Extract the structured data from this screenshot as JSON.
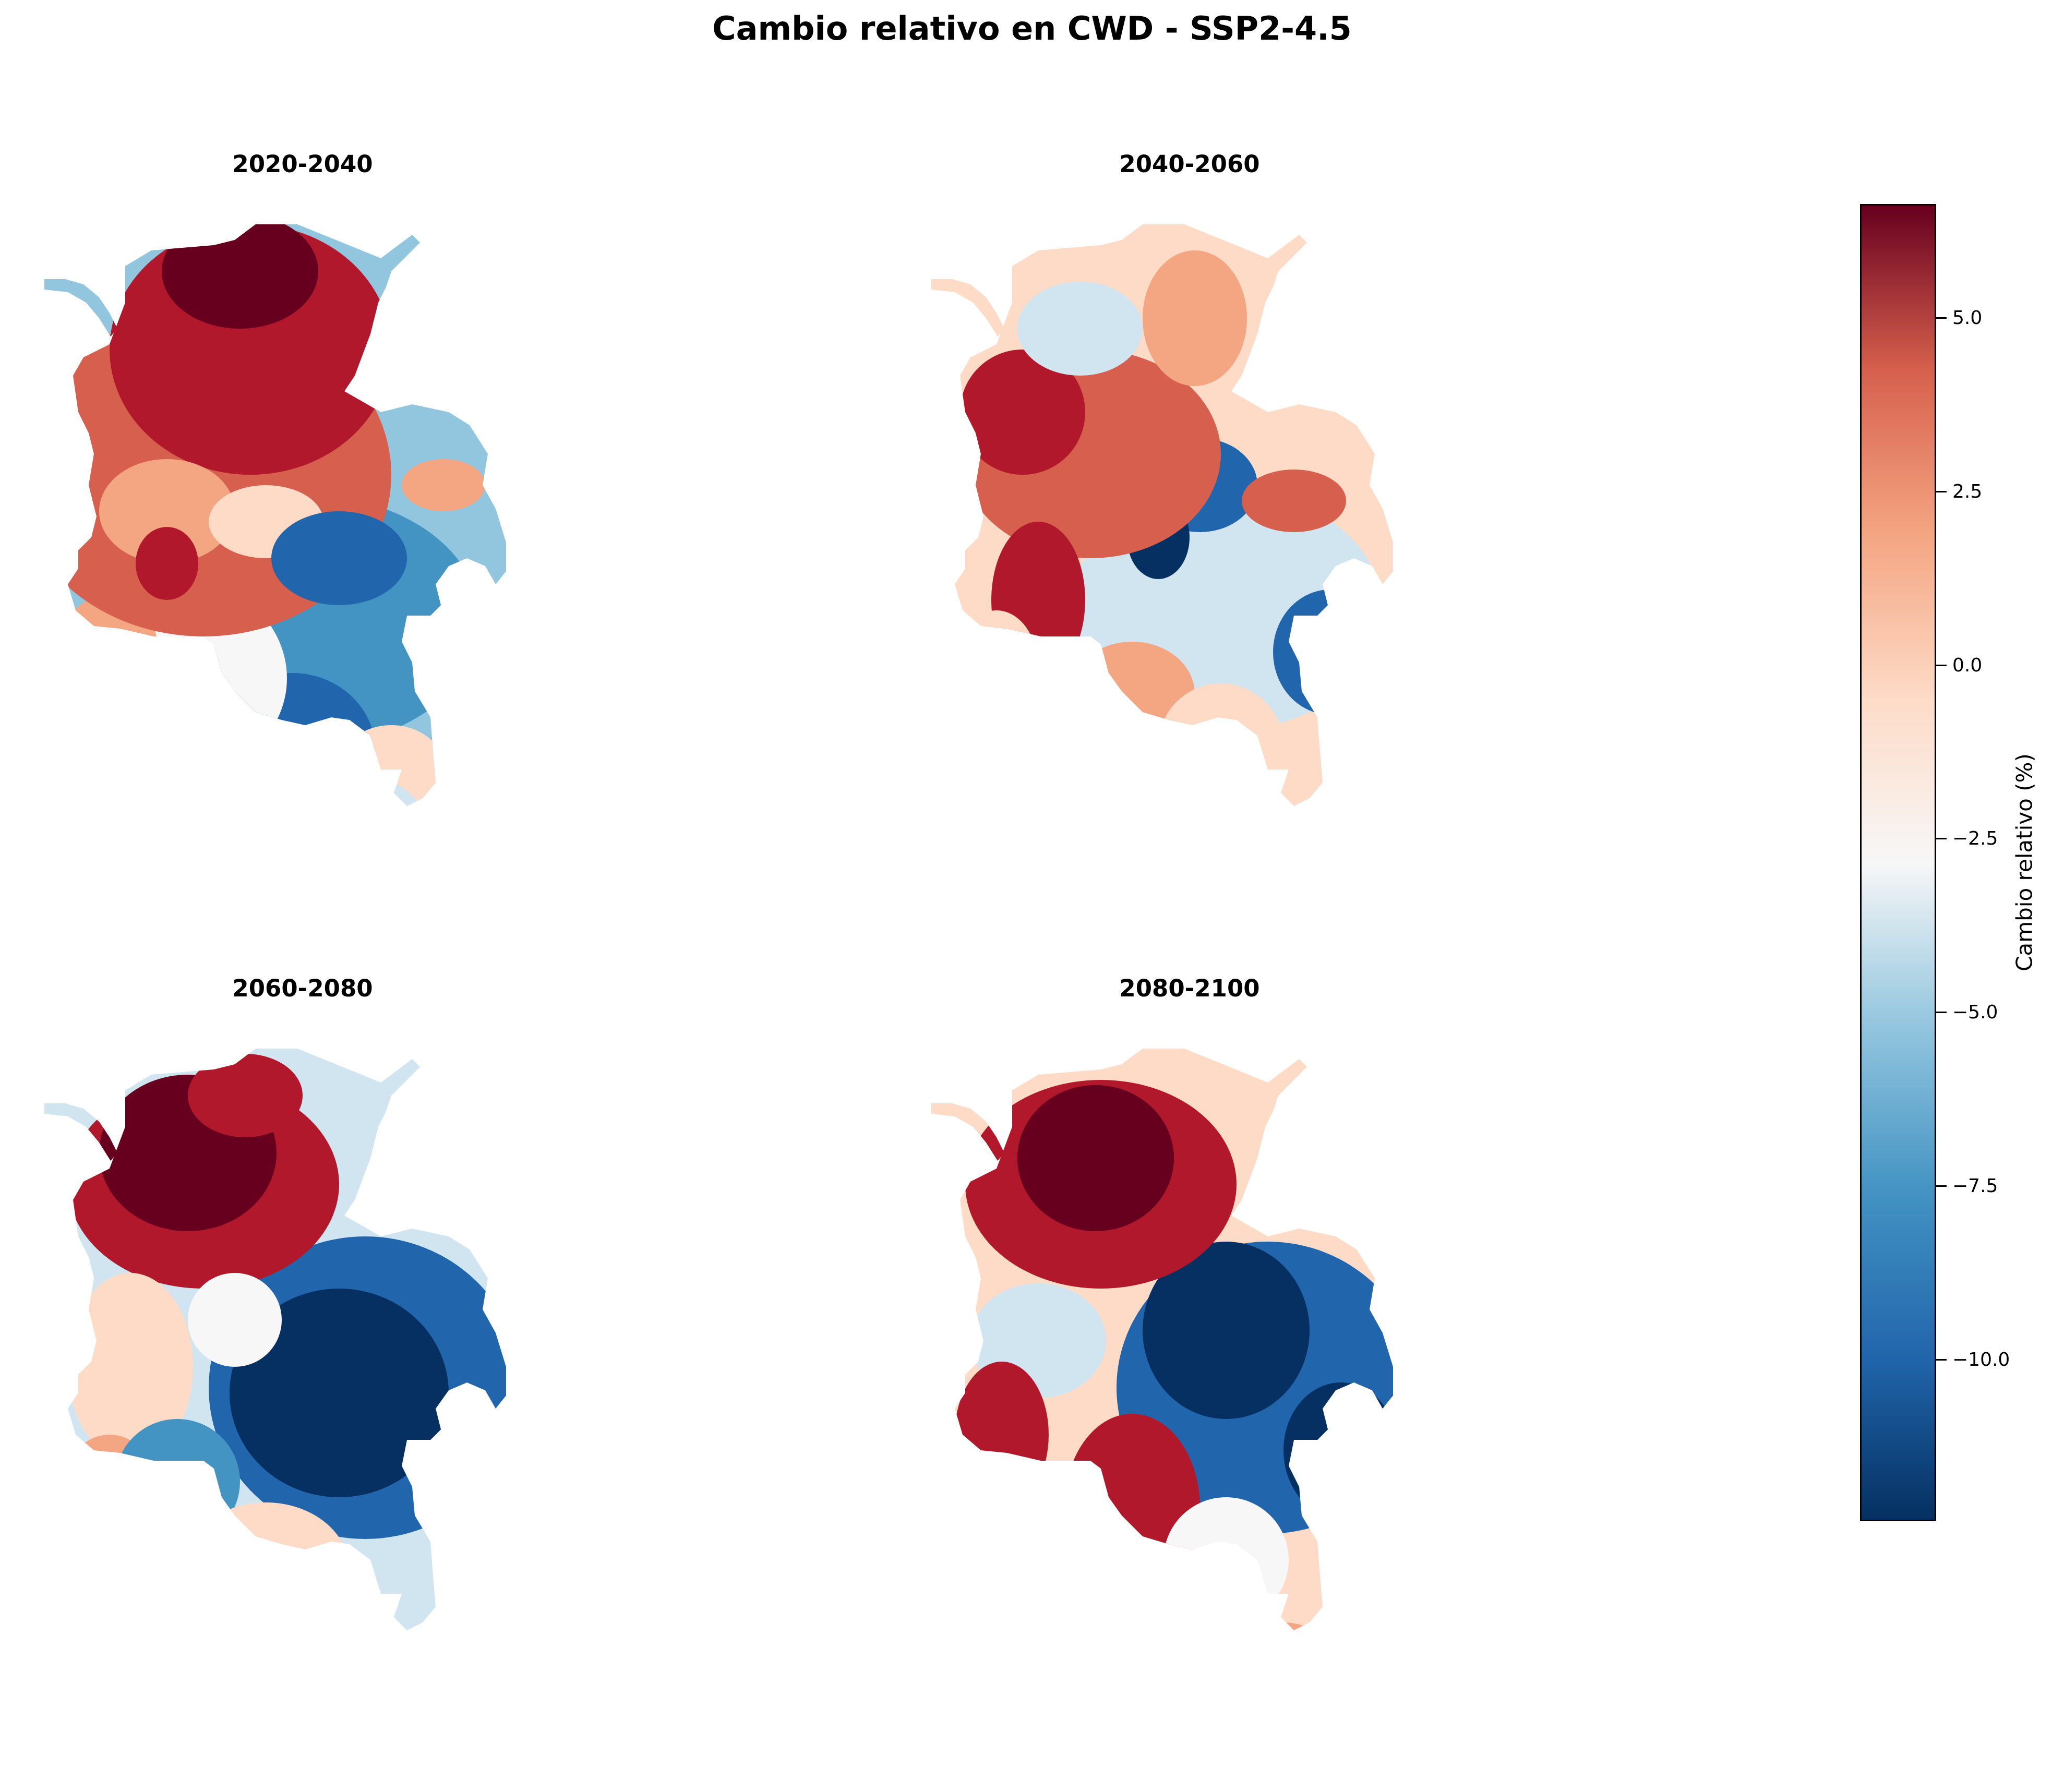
{
  "title": "Cambio relativo en CWD - SSP2-4.5",
  "panels": [
    {
      "period": "2020-2040",
      "map_pattern": "north-red-south-blue"
    },
    {
      "period": "2040-2060",
      "map_pattern": "mixed-west-red"
    },
    {
      "period": "2060-2080",
      "map_pattern": "north-red-east-deep-blue"
    },
    {
      "period": "2080-2100",
      "map_pattern": "north-and-southwest-red-east-blue"
    }
  ],
  "colorbar": {
    "label": "Cambio relativo (%)",
    "ticks": [
      "5.0",
      "2.5",
      "0.0",
      "−2.5",
      "−5.0",
      "−7.5",
      "−10.0"
    ],
    "tick_values": [
      5.0,
      2.5,
      0.0,
      -2.5,
      -5.0,
      -7.5,
      -10.0
    ],
    "range": [
      -12.0,
      6.5
    ],
    "colormap": "RdBu_r",
    "colors": [
      "#053061",
      "#2166ac",
      "#4393c3",
      "#92c5de",
      "#f7f7f7",
      "#fddbc7",
      "#f4a582",
      "#d6604d",
      "#67001f"
    ]
  }
}
